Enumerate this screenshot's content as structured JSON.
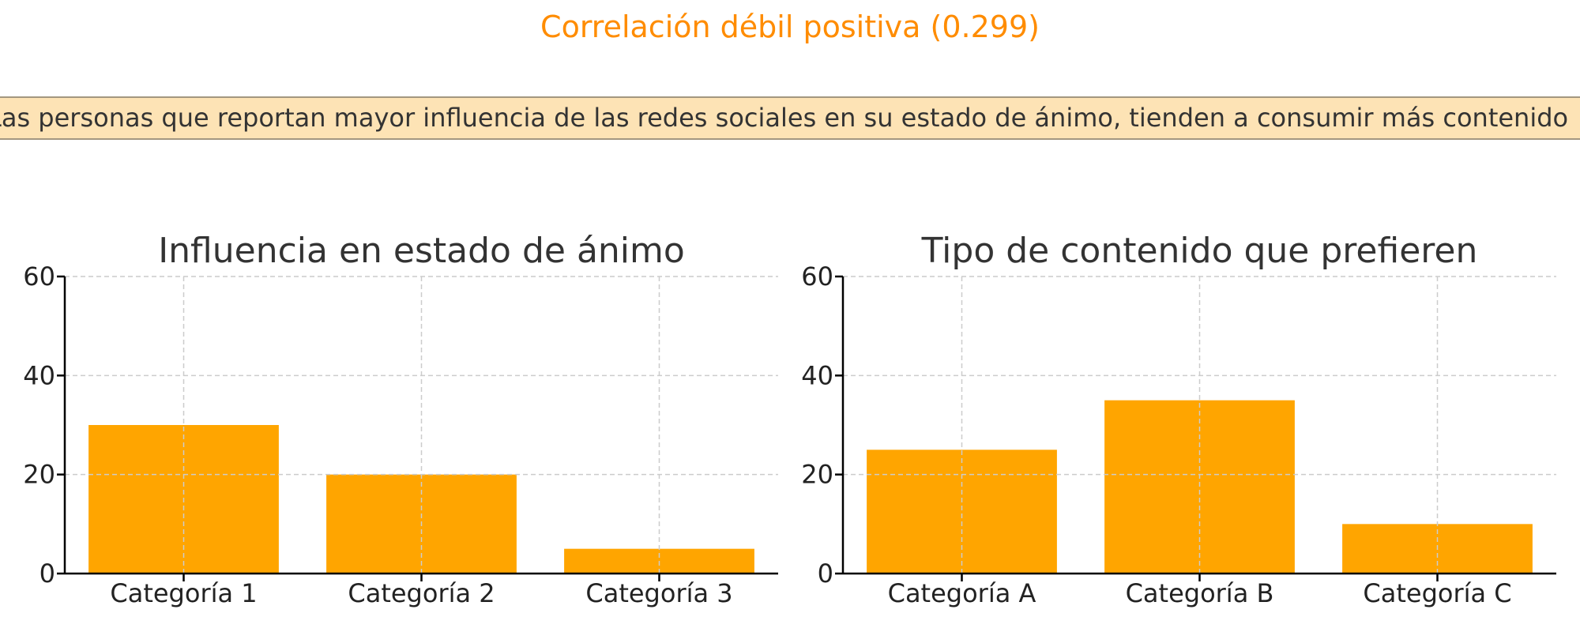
{
  "header": {
    "correlation_label": "Correlación débil positiva (0.299)",
    "correlation_color": "#ff8c00",
    "note": "Las personas que reportan mayor influencia de las redes sociales en su estado de ánimo, tienden a consumir más contenido"
  },
  "colors": {
    "bar": "#ffa500",
    "grid": "#cccccc",
    "axis": "#000000",
    "title": "#333333",
    "note_bg": "#fde3b5",
    "note_border": "#a39780"
  },
  "chart_data": [
    {
      "type": "bar",
      "title": "Influencia en estado de ánimo",
      "categories": [
        "Categoría 1",
        "Categoría 2",
        "Categoría 3"
      ],
      "values": [
        30,
        20,
        5
      ],
      "xlabel": "",
      "ylabel": "",
      "ylim": [
        0,
        60
      ],
      "yticks": [
        0,
        20,
        40,
        60
      ],
      "grid": true,
      "bar_color": "#ffa500"
    },
    {
      "type": "bar",
      "title": "Tipo de contenido que prefieren",
      "categories": [
        "Categoría A",
        "Categoría B",
        "Categoría C"
      ],
      "values": [
        25,
        35,
        10
      ],
      "xlabel": "",
      "ylabel": "",
      "ylim": [
        0,
        60
      ],
      "yticks": [
        0,
        20,
        40,
        60
      ],
      "grid": true,
      "bar_color": "#ffa500"
    }
  ]
}
